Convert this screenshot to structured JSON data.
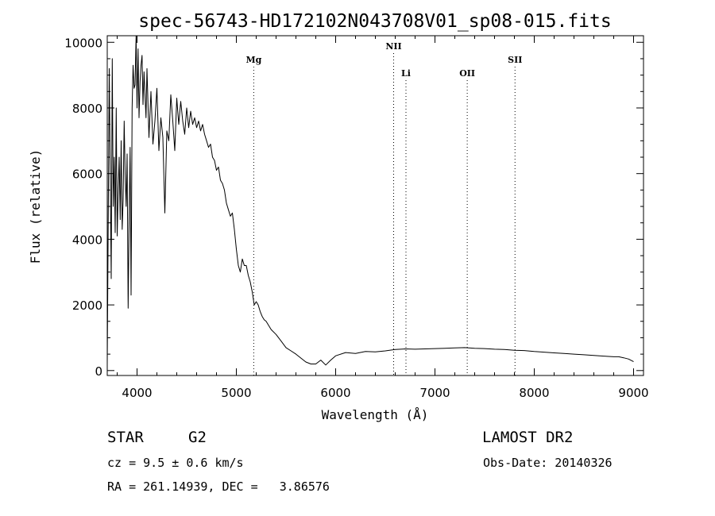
{
  "chart_data": {
    "type": "line",
    "title": "spec-56743-HD172102N043708V01_sp08-015.fits",
    "xlabel": "Wavelength (Å)",
    "ylabel": "Flux (relative)",
    "xlim": [
      3700,
      9100
    ],
    "ylim": [
      -150,
      10200
    ],
    "xticks": [
      "4000",
      "5000",
      "6000",
      "7000",
      "8000",
      "9000"
    ],
    "yticks": [
      "0",
      "2000",
      "4000",
      "6000",
      "8000",
      "10000"
    ],
    "grid": false,
    "spectral_lines": [
      {
        "name": "Mg",
        "wavelength": 5175
      },
      {
        "name": "NII",
        "wavelength": 6584
      },
      {
        "name": "Li",
        "wavelength": 6708
      },
      {
        "name": "OII",
        "wavelength": 7325
      },
      {
        "name": "SII",
        "wavelength": 7806
      }
    ],
    "series": [
      {
        "x": [
          3700,
          3720,
          3740,
          3750,
          3760,
          3770,
          3780,
          3790,
          3800,
          3810,
          3820,
          3830,
          3840,
          3850,
          3860,
          3870,
          3880,
          3890,
          3900,
          3910,
          3920,
          3930,
          3940,
          3950,
          3960,
          3970,
          3980,
          3990,
          4000,
          4010,
          4020,
          4030,
          4040,
          4050,
          4060,
          4070,
          4080,
          4090,
          4100,
          4120,
          4140,
          4160,
          4180,
          4200,
          4220,
          4240,
          4260,
          4280,
          4300,
          4320,
          4340,
          4360,
          4380,
          4400,
          4420,
          4440,
          4460,
          4480,
          4500,
          4520,
          4540,
          4560,
          4580,
          4600,
          4620,
          4640,
          4660,
          4680,
          4700,
          4720,
          4740,
          4760,
          4780,
          4800,
          4820,
          4840,
          4860,
          4880,
          4900,
          4920,
          4940,
          4960,
          4980,
          5000,
          5020,
          5040,
          5060,
          5080,
          5100,
          5120,
          5140,
          5160,
          5180,
          5200,
          5220,
          5240,
          5260,
          5280,
          5300,
          5350,
          5400,
          5450,
          5500,
          5550,
          5600,
          5650,
          5700,
          5750,
          5800,
          5850,
          5900,
          5950,
          6000,
          6100,
          6200,
          6300,
          6400,
          6500,
          6600,
          6700,
          6800,
          6900,
          7000,
          7100,
          7200,
          7300,
          7400,
          7500,
          7600,
          7700,
          7800,
          7900,
          8000,
          8100,
          8200,
          8300,
          8400,
          8500,
          8600,
          8700,
          8800,
          8850,
          8900,
          8950,
          9000
        ],
        "values": [
          200,
          9200,
          2800,
          9500,
          5000,
          6500,
          4200,
          8000,
          4100,
          5500,
          6500,
          4600,
          7000,
          4300,
          5200,
          7600,
          6000,
          5000,
          6600,
          1900,
          4500,
          6800,
          2300,
          8000,
          9300,
          8600,
          8700,
          10200,
          8000,
          9800,
          7700,
          8800,
          9300,
          9600,
          8100,
          9100,
          8400,
          7700,
          9200,
          7100,
          8500,
          6900,
          7600,
          8600,
          6700,
          7700,
          7100,
          4800,
          7300,
          7000,
          8400,
          7600,
          6700,
          8300,
          7500,
          8200,
          7600,
          7200,
          8000,
          7400,
          7900,
          7500,
          7700,
          7400,
          7600,
          7300,
          7500,
          7200,
          7000,
          6800,
          6900,
          6500,
          6400,
          6100,
          6200,
          5800,
          5700,
          5500,
          5100,
          4900,
          4700,
          4800,
          4300,
          3700,
          3200,
          3000,
          3400,
          3200,
          3200,
          2900,
          2700,
          2400,
          2000,
          2100,
          2000,
          1800,
          1650,
          1550,
          1500,
          1250,
          1100,
          900,
          700,
          600,
          500,
          380,
          260,
          200,
          200,
          320,
          170,
          320,
          450,
          550,
          520,
          580,
          570,
          600,
          640,
          660,
          650,
          660,
          670,
          680,
          690,
          700,
          680,
          670,
          650,
          640,
          620,
          610,
          580,
          560,
          540,
          520,
          500,
          480,
          460,
          440,
          420,
          420,
          390,
          350,
          270
        ]
      }
    ]
  },
  "footer": {
    "object_class": "STAR",
    "subclass": "G2",
    "survey": "LAMOST DR2",
    "cz": "cz = 9.5 ± 0.6 km/s",
    "obs_date": "Obs-Date: 20140326",
    "coords": "RA = 261.14939, DEC =   3.86576"
  }
}
